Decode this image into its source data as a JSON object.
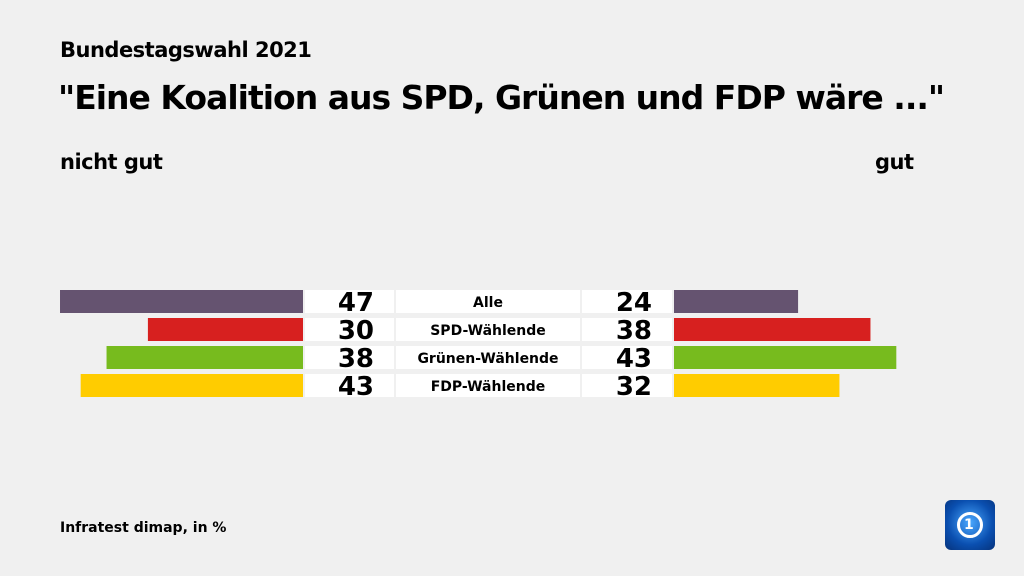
{
  "header": {
    "subtitle": "Bundestagswahl 2021",
    "title": "\"Eine Koalition aus SPD, Grünen und FDP wäre ...\""
  },
  "legend": {
    "left": "nicht gut",
    "right": "gut"
  },
  "footer": {
    "source": "Infratest dimap, in %"
  },
  "logo": {
    "icon": "ard-das-erste-logo"
  },
  "chart_data": {
    "type": "bar",
    "orientation": "diverging-horizontal",
    "categories": [
      "Alle",
      "SPD-Wählende",
      "Grünen-Wählende",
      "FDP-Wählende"
    ],
    "series": [
      {
        "name": "nicht gut",
        "values": [
          47,
          30,
          38,
          43
        ]
      },
      {
        "name": "gut",
        "values": [
          24,
          38,
          43,
          32
        ]
      }
    ],
    "colors": [
      "#655370",
      "#d7201f",
      "#77bb1e",
      "#ffcc00"
    ],
    "unit": "%"
  }
}
